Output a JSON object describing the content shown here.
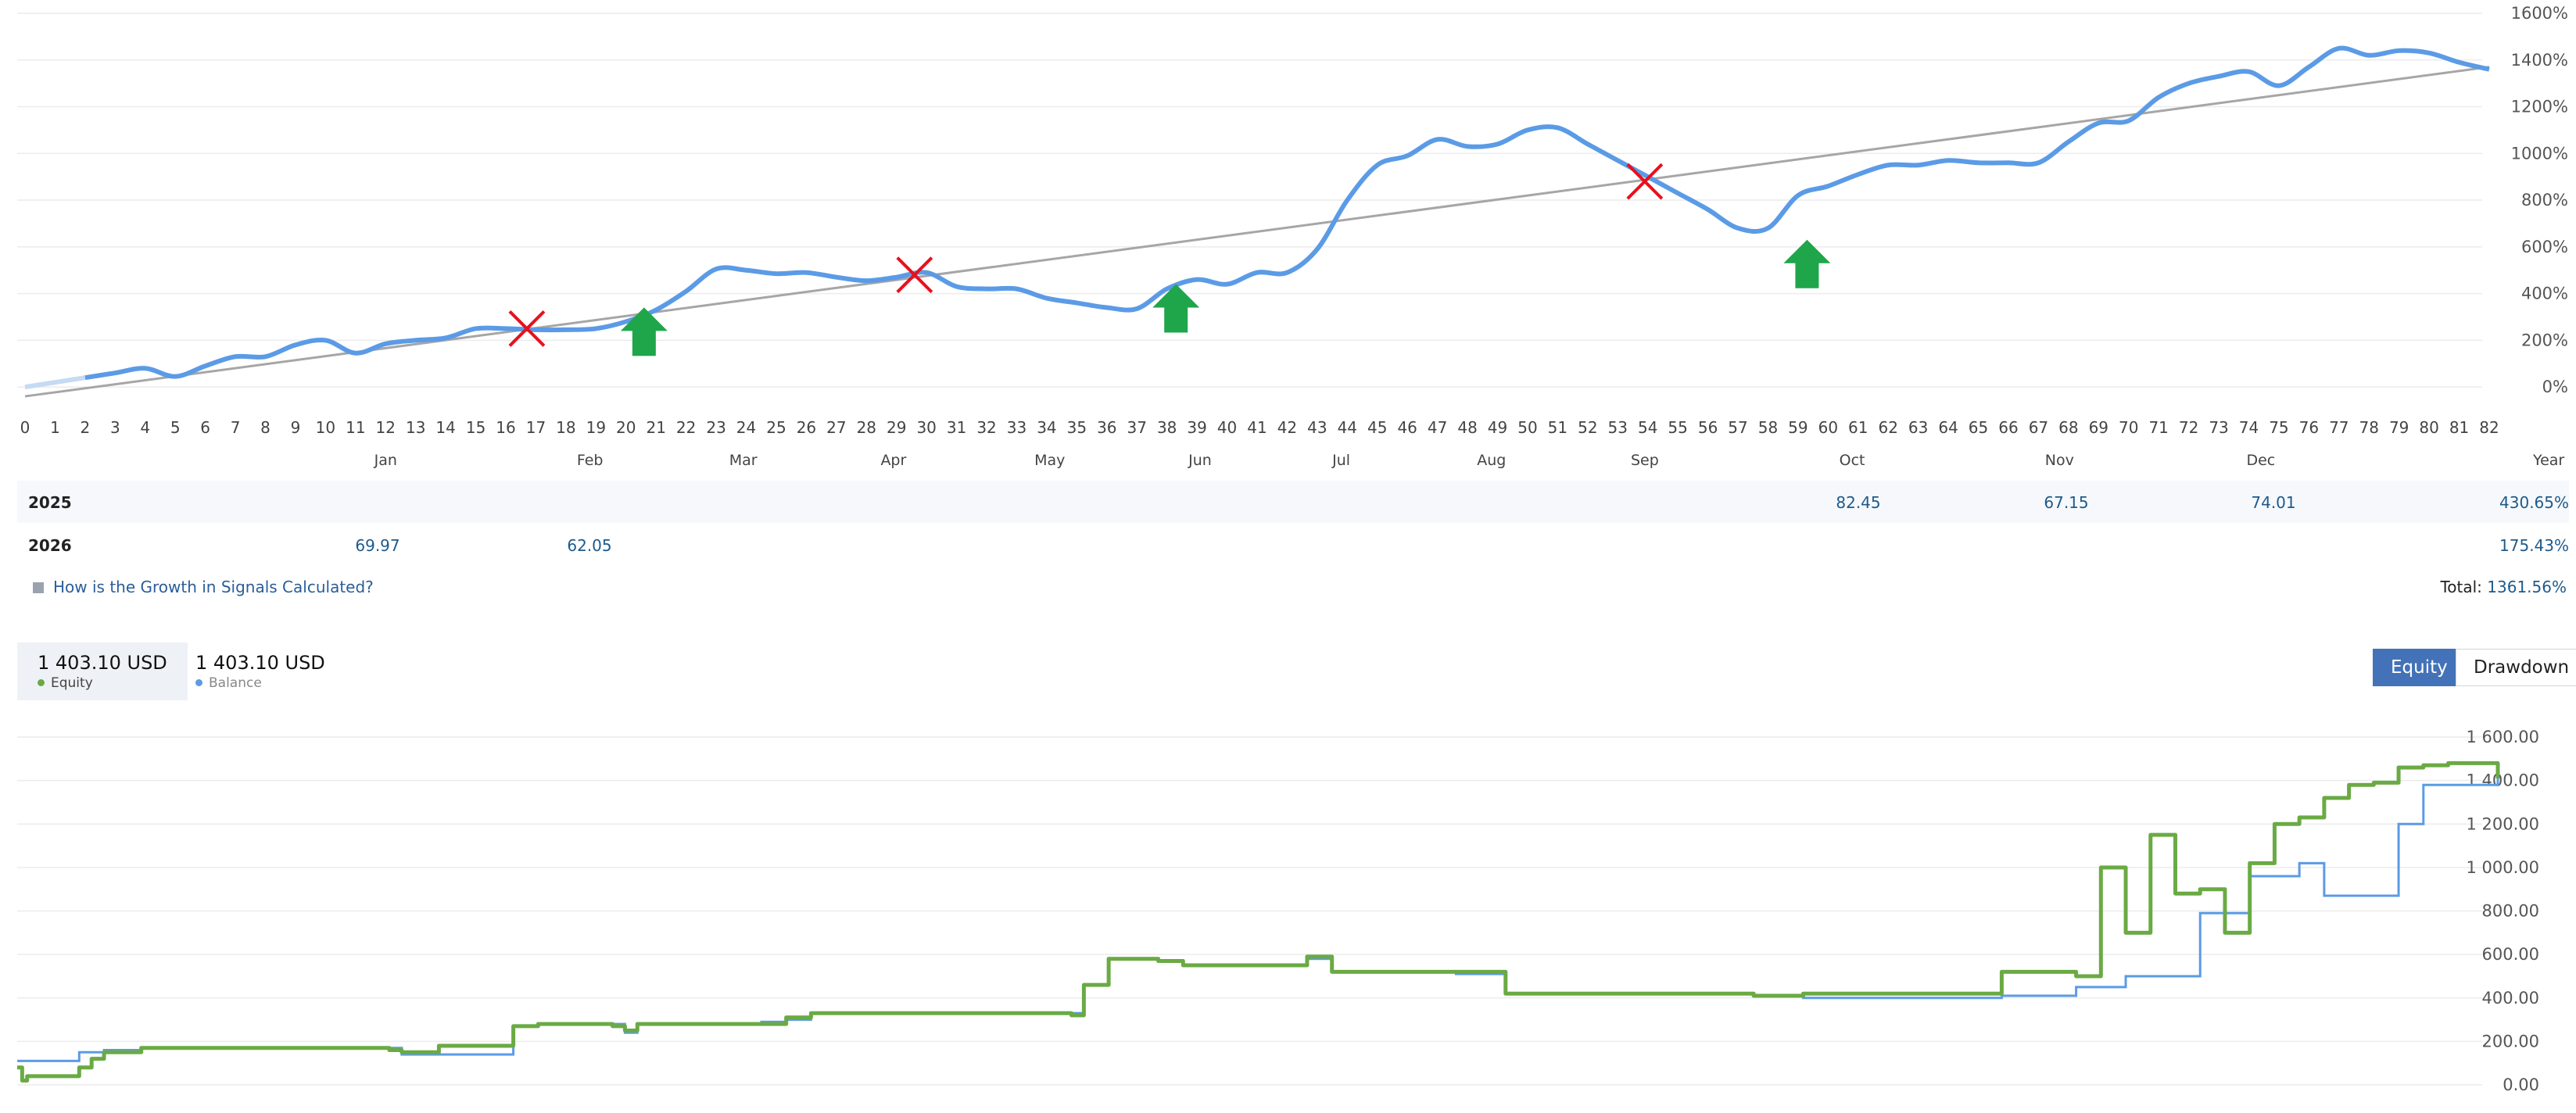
{
  "chart_data": [
    {
      "type": "line",
      "name": "growth",
      "ylim": [
        -100,
        1600
      ],
      "xlim": [
        0,
        82
      ],
      "y_ticks": [
        "0%",
        "200%",
        "400%",
        "600%",
        "800%",
        "1000%",
        "1200%",
        "1400%",
        "1600%"
      ],
      "x_ticks": [
        "0",
        "1",
        "2",
        "3",
        "4",
        "5",
        "6",
        "7",
        "8",
        "9",
        "10",
        "11",
        "12",
        "13",
        "14",
        "15",
        "16",
        "17",
        "18",
        "19",
        "20",
        "21",
        "22",
        "23",
        "24",
        "25",
        "26",
        "27",
        "28",
        "29",
        "30",
        "31",
        "32",
        "33",
        "34",
        "35",
        "36",
        "37",
        "38",
        "39",
        "40",
        "41",
        "42",
        "43",
        "44",
        "45",
        "46",
        "47",
        "48",
        "49",
        "50",
        "51",
        "52",
        "53",
        "54",
        "55",
        "56",
        "57",
        "58",
        "59",
        "60",
        "61",
        "62",
        "63",
        "64",
        "65",
        "66",
        "67",
        "68",
        "69",
        "70",
        "71",
        "72",
        "73",
        "74",
        "75",
        "76",
        "77",
        "78",
        "79",
        "80",
        "81",
        "82"
      ],
      "months": [
        {
          "label": "Jan",
          "x": 12
        },
        {
          "label": "Feb",
          "x": 18.8
        },
        {
          "label": "Mar",
          "x": 23.9
        },
        {
          "label": "Apr",
          "x": 28.9
        },
        {
          "label": "May",
          "x": 34.1
        },
        {
          "label": "Jun",
          "x": 39.1
        },
        {
          "label": "Jul",
          "x": 43.8
        },
        {
          "label": "Aug",
          "x": 48.8
        },
        {
          "label": "Sep",
          "x": 53.9
        },
        {
          "label": "Oct",
          "x": 60.8
        },
        {
          "label": "Nov",
          "x": 67.7
        },
        {
          "label": "Dec",
          "x": 74.4
        }
      ],
      "year_label": "Year",
      "series": [
        {
          "color": "#5b9be6",
          "x": [
            0,
            2,
            3,
            4,
            5,
            6,
            7,
            8,
            9,
            10,
            11,
            12,
            13,
            14,
            15,
            16,
            17,
            18,
            19,
            20,
            21,
            22,
            23,
            24,
            25,
            26,
            27,
            28,
            29,
            30,
            31,
            32,
            33,
            34,
            35,
            36,
            37,
            38,
            39,
            40,
            41,
            42,
            43,
            44,
            45,
            46,
            47,
            48,
            49,
            50,
            51,
            52,
            53,
            54,
            55,
            56,
            57,
            58,
            59,
            60,
            61,
            62,
            63,
            64,
            65,
            66,
            67,
            68,
            69,
            70,
            71,
            72,
            73,
            74,
            75,
            76,
            77,
            78,
            79,
            80,
            81,
            82
          ],
          "y": [
            0,
            40,
            60,
            80,
            45,
            90,
            130,
            130,
            180,
            200,
            145,
            185,
            200,
            210,
            250,
            250,
            245,
            245,
            250,
            280,
            330,
            410,
            505,
            500,
            485,
            490,
            470,
            455,
            470,
            490,
            430,
            420,
            420,
            380,
            360,
            340,
            335,
            420,
            460,
            440,
            490,
            490,
            590,
            800,
            950,
            990,
            1060,
            1030,
            1040,
            1100,
            1110,
            1040,
            970,
            900,
            830,
            760,
            680,
            680,
            820,
            860,
            910,
            950,
            950,
            970,
            960,
            960,
            960,
            1050,
            1130,
            1140,
            1240,
            1300,
            1330,
            1350,
            1290,
            1370,
            1450,
            1420,
            1440,
            1430,
            1390,
            1360
          ]
        },
        {
          "color": "#a6a6a6",
          "x": [
            0,
            82
          ],
          "y": [
            -40,
            1370
          ]
        }
      ],
      "markers": [
        {
          "kind": "cross",
          "x": 16.7,
          "y": 250
        },
        {
          "kind": "cross",
          "x": 29.6,
          "y": 480
        },
        {
          "kind": "cross",
          "x": 53.9,
          "y": 880
        },
        {
          "kind": "up-arrow",
          "x": 20.6,
          "y": 240
        },
        {
          "kind": "up-arrow",
          "x": 38.3,
          "y": 340
        },
        {
          "kind": "up-arrow",
          "x": 59.3,
          "y": 530
        }
      ]
    },
    {
      "type": "line",
      "name": "equity-balance",
      "ylim": [
        0,
        1600
      ],
      "xlim": [
        0,
        1
      ],
      "y_ticks": [
        "0.00",
        "200.00",
        "400.00",
        "600.00",
        "800.00",
        "1 000.00",
        "1 200.00",
        "1 400.00",
        "1 600.00"
      ],
      "series": [
        {
          "name": "Balance",
          "color": "#5b9be6",
          "x": [
            0,
            0.02,
            0.025,
            0.035,
            0.05,
            0.15,
            0.155,
            0.2,
            0.21,
            0.24,
            0.245,
            0.25,
            0.3,
            0.31,
            0.32,
            0.42,
            0.43,
            0.44,
            0.45,
            0.46,
            0.47,
            0.5,
            0.52,
            0.53,
            0.58,
            0.6,
            0.7,
            0.72,
            0.8,
            0.83,
            0.85,
            0.87,
            0.88,
            0.9,
            0.92,
            0.93,
            0.95,
            0.96,
            0.97,
            0.98,
            1
          ],
          "y": [
            110,
            110,
            150,
            160,
            170,
            170,
            140,
            270,
            280,
            280,
            240,
            280,
            290,
            300,
            330,
            330,
            460,
            580,
            580,
            570,
            550,
            550,
            580,
            520,
            510,
            420,
            410,
            400,
            410,
            450,
            500,
            500,
            790,
            960,
            1020,
            870,
            870,
            1200,
            1380,
            1380,
            1480
          ]
        },
        {
          "name": "Equity",
          "color": "#6aaa44",
          "x": [
            0,
            0.002,
            0.004,
            0.02,
            0.025,
            0.03,
            0.035,
            0.05,
            0.15,
            0.155,
            0.17,
            0.2,
            0.21,
            0.24,
            0.245,
            0.25,
            0.3,
            0.31,
            0.32,
            0.42,
            0.425,
            0.43,
            0.44,
            0.45,
            0.46,
            0.47,
            0.5,
            0.52,
            0.53,
            0.58,
            0.6,
            0.7,
            0.72,
            0.8,
            0.82,
            0.83,
            0.84,
            0.85,
            0.86,
            0.87,
            0.88,
            0.89,
            0.9,
            0.91,
            0.92,
            0.93,
            0.94,
            0.95,
            0.96,
            0.97,
            0.98,
            1
          ],
          "y": [
            80,
            20,
            40,
            40,
            80,
            120,
            150,
            170,
            160,
            150,
            180,
            270,
            280,
            270,
            250,
            280,
            280,
            310,
            330,
            330,
            320,
            460,
            580,
            580,
            570,
            550,
            550,
            590,
            520,
            520,
            420,
            410,
            420,
            520,
            520,
            500,
            1000,
            700,
            1150,
            880,
            900,
            700,
            1020,
            1200,
            1230,
            1320,
            1380,
            1390,
            1460,
            1470,
            1480,
            1410
          ]
        }
      ]
    }
  ],
  "table": {
    "rows": [
      {
        "year": "2025",
        "cells": [
          {
            "month": "Oct",
            "value": "82.45"
          },
          {
            "month": "Nov",
            "value": "67.15"
          },
          {
            "month": "Dec",
            "value": "74.01"
          }
        ],
        "total": "430.65%"
      },
      {
        "year": "2026",
        "cells": [
          {
            "month": "Jan",
            "value": "69.97"
          },
          {
            "month": "Feb",
            "value": "62.05"
          }
        ],
        "total": "175.43%"
      }
    ]
  },
  "footer": {
    "link": "How is the Growth in Signals Calculated?",
    "total_label": "Total:",
    "total_value": "1361.56%"
  },
  "stats": {
    "equity_value": "1 403.10 USD",
    "equity_label": "Equity",
    "balance_value": "1 403.10 USD",
    "balance_label": "Balance"
  },
  "toggle": {
    "equity": "Equity",
    "drawdown": "Drawdown"
  },
  "colors": {
    "growth": "#5b9be6",
    "trend": "#a6a6a6",
    "equity": "#6aaa44",
    "balance": "#5b9be6",
    "cross": "#e8101d",
    "arrow": "#1fa64a"
  }
}
